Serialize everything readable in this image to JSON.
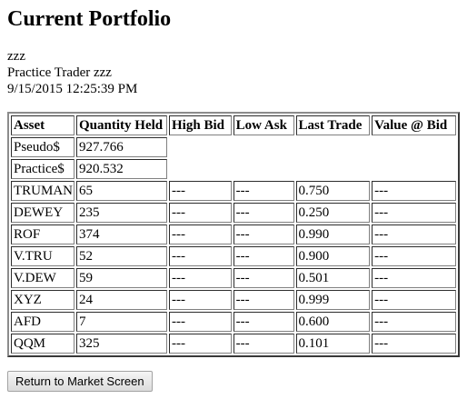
{
  "title": "Current Portfolio",
  "info": {
    "user": "zzz",
    "trader": "Practice Trader zzz",
    "timestamp": "9/15/2015 12:25:39 PM"
  },
  "table": {
    "headers": [
      "Asset",
      "Quantity Held",
      "High Bid",
      "Low Ask",
      "Last Trade",
      "Value @ Bid"
    ],
    "cash_rows": [
      {
        "asset": "Pseudo$",
        "quantity": "927.766"
      },
      {
        "asset": "Practice$",
        "quantity": "920.532"
      }
    ],
    "rows": [
      {
        "asset": "TRUMAN",
        "quantity": "65",
        "high_bid": "---",
        "low_ask": "---",
        "last_trade": "0.750",
        "value_at_bid": "---"
      },
      {
        "asset": "DEWEY",
        "quantity": "235",
        "high_bid": "---",
        "low_ask": "---",
        "last_trade": "0.250",
        "value_at_bid": "---"
      },
      {
        "asset": "ROF",
        "quantity": "374",
        "high_bid": "---",
        "low_ask": "---",
        "last_trade": "0.990",
        "value_at_bid": "---"
      },
      {
        "asset": "V.TRU",
        "quantity": "52",
        "high_bid": "---",
        "low_ask": "---",
        "last_trade": "0.900",
        "value_at_bid": "---"
      },
      {
        "asset": "V.DEW",
        "quantity": "59",
        "high_bid": "---",
        "low_ask": "---",
        "last_trade": "0.501",
        "value_at_bid": "---"
      },
      {
        "asset": "XYZ",
        "quantity": "24",
        "high_bid": "---",
        "low_ask": "---",
        "last_trade": "0.999",
        "value_at_bid": "---"
      },
      {
        "asset": "AFD",
        "quantity": "7",
        "high_bid": "---",
        "low_ask": "---",
        "last_trade": "0.600",
        "value_at_bid": "---"
      },
      {
        "asset": "QQM",
        "quantity": "325",
        "high_bid": "---",
        "low_ask": "---",
        "last_trade": "0.101",
        "value_at_bid": "---"
      }
    ]
  },
  "return_button": "Return to Market Screen"
}
